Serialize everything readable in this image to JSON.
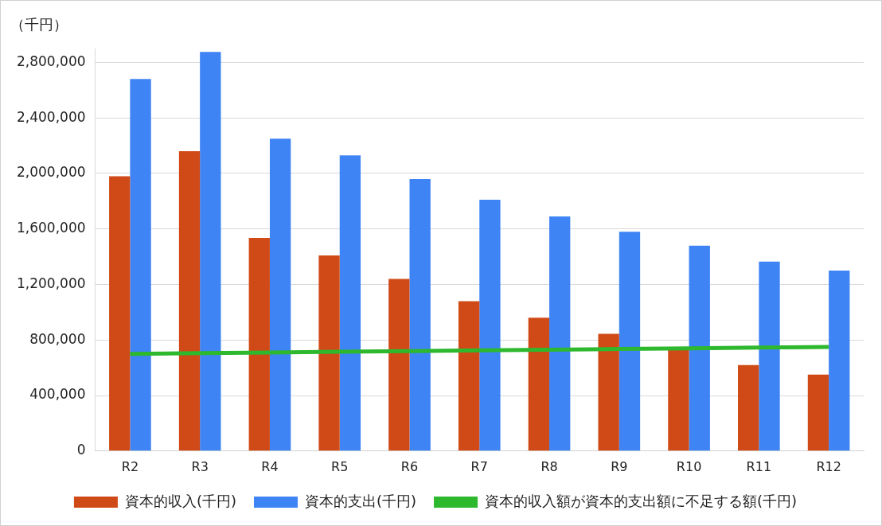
{
  "chart_data": {
    "type": "bar",
    "ylabel": "（千円）",
    "categories": [
      "R2",
      "R3",
      "R4",
      "R5",
      "R6",
      "R7",
      "R8",
      "R9",
      "R10",
      "R11",
      "R12"
    ],
    "series": [
      {
        "name": "資本的収入(千円)",
        "color": "#d04a17",
        "values": [
          1980000,
          2160000,
          1535000,
          1410000,
          1240000,
          1080000,
          960000,
          845000,
          730000,
          620000,
          550000
        ]
      },
      {
        "name": "資本的支出(千円)",
        "color": "#3f84f5",
        "values": [
          2680000,
          2875000,
          2250000,
          2130000,
          1960000,
          1810000,
          1690000,
          1580000,
          1480000,
          1365000,
          1300000
        ]
      },
      {
        "name": "資本的収入額が資本的支出額に不足する額(千円)",
        "type": "line",
        "color": "#2db82d",
        "values": [
          700000,
          705000,
          710000,
          715000,
          720000,
          725000,
          730000,
          735000,
          740000,
          745000,
          750000
        ]
      }
    ],
    "ylim": [
      0,
      2900000
    ],
    "yticks": [
      0,
      {
        "value": 400000,
        "label": "400,000"
      },
      {
        "value": 800000,
        "label": "800,000"
      },
      {
        "value": 1200000,
        "label": "1,200,000"
      },
      {
        "value": 1600000,
        "label": "1,600,000"
      },
      {
        "value": 2000000,
        "label": "2,000,000"
      },
      {
        "value": 2400000,
        "label": "2,400,000"
      },
      {
        "value": 2800000,
        "label": "2,800,000"
      }
    ],
    "grid": "y",
    "legend": "bottom",
    "marker": "none"
  }
}
